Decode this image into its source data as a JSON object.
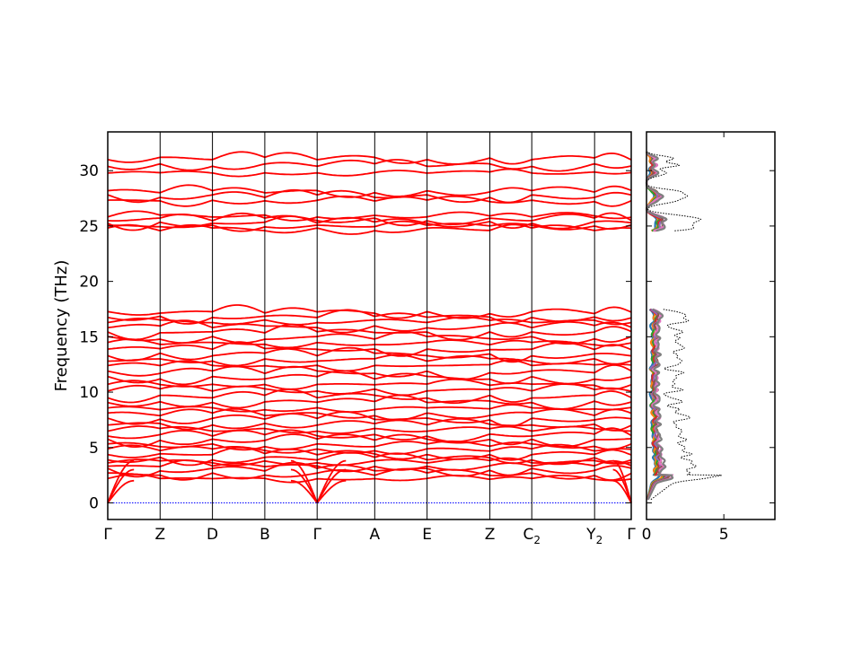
{
  "chart_data": [
    {
      "type": "line",
      "ylabel": "Frequency (THz)",
      "ylim": [
        -1.5,
        33.5
      ],
      "yticks": [
        0,
        5,
        10,
        15,
        20,
        25,
        30
      ],
      "xticks": [
        {
          "label": "Γ",
          "sub": ""
        },
        {
          "label": "Z",
          "sub": ""
        },
        {
          "label": "D",
          "sub": ""
        },
        {
          "label": "B",
          "sub": ""
        },
        {
          "label": "Γ",
          "sub": ""
        },
        {
          "label": "A",
          "sub": ""
        },
        {
          "label": "E",
          "sub": ""
        },
        {
          "label": "Z",
          "sub": ""
        },
        {
          "label": "C",
          "sub": "2"
        },
        {
          "label": "Y",
          "sub": "2"
        },
        {
          "label": "Γ",
          "sub": ""
        }
      ],
      "path_positions": [
        0,
        1,
        2,
        3,
        4,
        5.1,
        6.1,
        7.3,
        8.1,
        9.3,
        10
      ],
      "band_color": "#ff0000",
      "zero_line_color": "#0000ff",
      "bands_high": [
        24.7,
        25.0,
        25.3,
        25.6,
        25.9,
        27.3,
        27.7,
        28.1,
        29.8,
        30.5,
        31.1
      ],
      "bands_low": [
        2.2,
        2.6,
        3.0,
        3.3,
        3.7,
        4.0,
        4.4,
        4.8,
        5.2,
        5.7,
        6.1,
        6.6,
        7.1,
        7.6,
        8.0,
        8.5,
        9.1,
        9.6,
        10.2,
        10.7,
        11.3,
        11.8,
        12.4,
        12.9,
        13.4,
        13.9,
        14.4,
        14.9,
        15.4,
        15.9,
        16.4,
        16.8,
        17.2
      ]
    },
    {
      "type": "line",
      "xticks": [
        0,
        5
      ],
      "xlim": [
        0,
        8.3
      ],
      "ylim": [
        -1.5,
        33.5
      ],
      "total_color": "#000000",
      "partial_colors": [
        "#1f77b4",
        "#ff7f0e",
        "#2ca02c",
        "#d62728",
        "#9467bd",
        "#8c564b",
        "#e377c2",
        "#7f7f7f"
      ]
    }
  ]
}
